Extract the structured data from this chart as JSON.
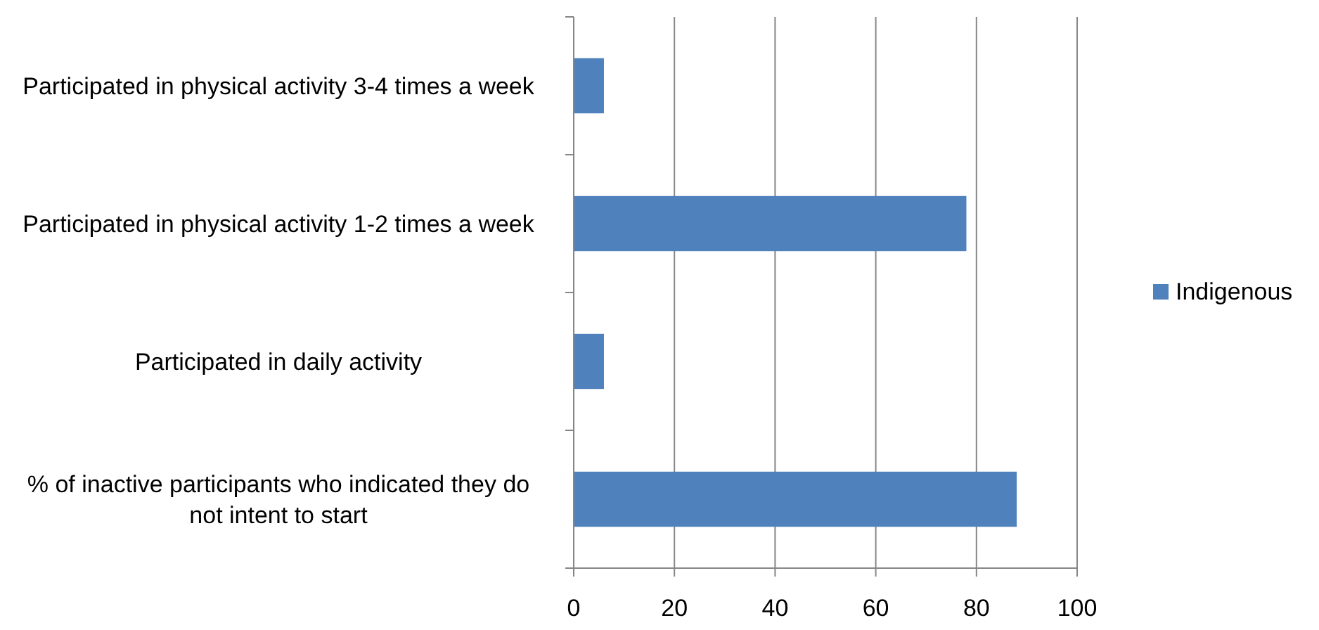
{
  "chart_data": {
    "type": "bar",
    "orientation": "horizontal",
    "categories": [
      "Participated in physical activity 3-4 times a week",
      "Participated in physical activity 1-2 times a week",
      "Participated in daily activity",
      "% of inactive participants who indicated they do not intent to start"
    ],
    "series": [
      {
        "name": "Indigenous",
        "color": "#4f81bd",
        "values": [
          6,
          78,
          6,
          88
        ]
      }
    ],
    "xlim": [
      0,
      100
    ],
    "xticks": [
      0,
      20,
      40,
      60,
      80,
      100
    ],
    "grid": "x",
    "legend": "right"
  }
}
